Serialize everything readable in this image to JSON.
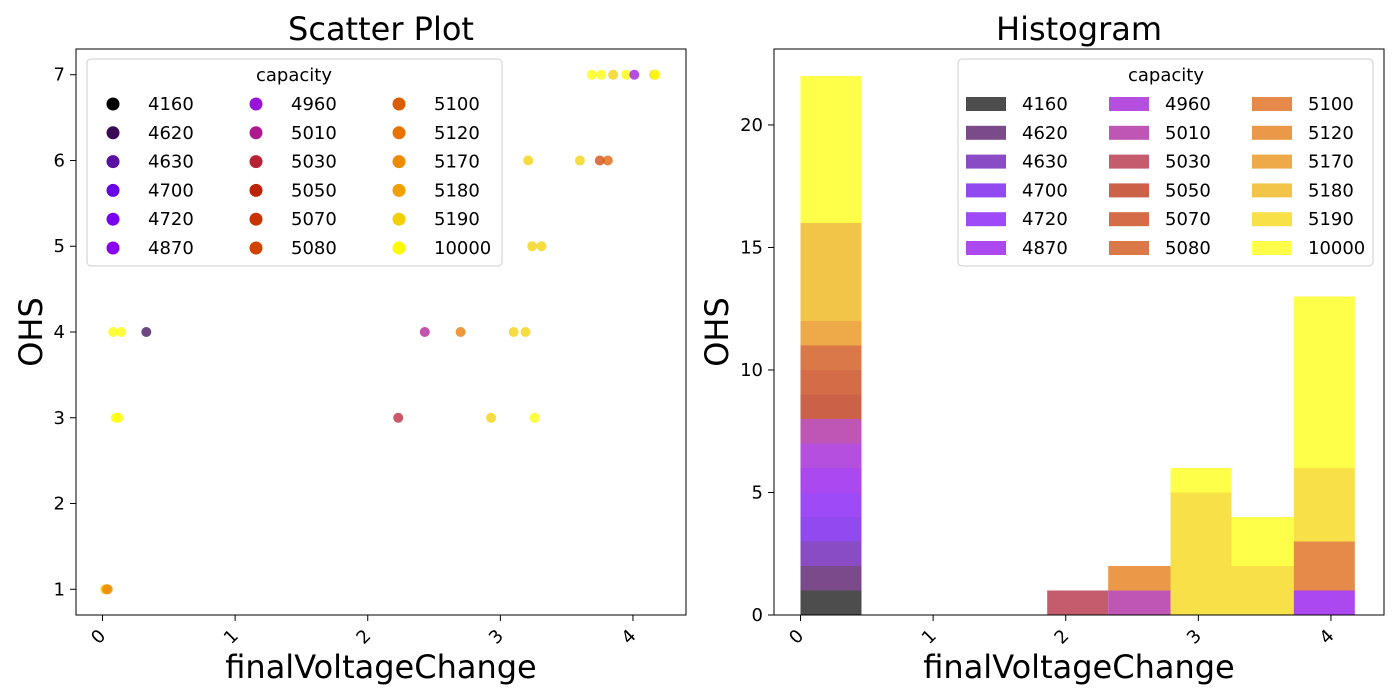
{
  "chart_data": [
    {
      "type": "scatter",
      "title": "Scatter Plot",
      "xlabel": "finalVoltageChange",
      "ylabel": "OHS",
      "xlim": [
        -0.2,
        4.4
      ],
      "ylim": [
        0.7,
        7.3
      ],
      "xticks": [
        "0",
        "1",
        "2",
        "3",
        "4"
      ],
      "yticks": [
        "1",
        "2",
        "3",
        "4",
        "5",
        "6",
        "7"
      ],
      "legend": {
        "title": "capacity",
        "placement": "upper-left",
        "entries": [
          "4160",
          "4620",
          "4630",
          "4700",
          "4720",
          "4870",
          "4960",
          "5010",
          "5030",
          "5050",
          "5070",
          "5080",
          "5100",
          "5120",
          "5170",
          "5180",
          "5190",
          "10000"
        ],
        "colors": [
          "#000000",
          "#3b0a57",
          "#5a0fa0",
          "#6a00e8",
          "#7a00f0",
          "#8b00f0",
          "#9a13d8",
          "#ad1a90",
          "#b82235",
          "#bd2202",
          "#c83300",
          "#d04400",
          "#dc5c00",
          "#e87300",
          "#ec8a00",
          "#f0a000",
          "#f2d000",
          "#fcfc00"
        ]
      },
      "points": [
        {
          "x": 0.02,
          "y": 1,
          "c": 16
        },
        {
          "x": 0.03,
          "y": 1,
          "c": 15
        },
        {
          "x": 0.04,
          "y": 1,
          "c": 14
        },
        {
          "x": 0.1,
          "y": 3,
          "c": 17
        },
        {
          "x": 0.12,
          "y": 3,
          "c": 17
        },
        {
          "x": 0.08,
          "y": 4,
          "c": 17
        },
        {
          "x": 0.14,
          "y": 4,
          "c": 17
        },
        {
          "x": 0.33,
          "y": 4,
          "c": 1
        },
        {
          "x": 2.23,
          "y": 3,
          "c": 8
        },
        {
          "x": 2.43,
          "y": 4,
          "c": 7
        },
        {
          "x": 2.7,
          "y": 4,
          "c": 13
        },
        {
          "x": 2.93,
          "y": 3,
          "c": 16
        },
        {
          "x": 3.1,
          "y": 4,
          "c": 16
        },
        {
          "x": 3.19,
          "y": 4,
          "c": 16
        },
        {
          "x": 3.26,
          "y": 3,
          "c": 17
        },
        {
          "x": 3.24,
          "y": 5,
          "c": 16
        },
        {
          "x": 3.31,
          "y": 5,
          "c": 16
        },
        {
          "x": 3.21,
          "y": 6,
          "c": 16
        },
        {
          "x": 3.6,
          "y": 6,
          "c": 16
        },
        {
          "x": 3.75,
          "y": 6,
          "c": 11
        },
        {
          "x": 3.81,
          "y": 6,
          "c": 12
        },
        {
          "x": 3.69,
          "y": 7,
          "c": 17
        },
        {
          "x": 3.76,
          "y": 7,
          "c": 17
        },
        {
          "x": 3.85,
          "y": 7,
          "c": 16
        },
        {
          "x": 3.95,
          "y": 7,
          "c": 17
        },
        {
          "x": 4.01,
          "y": 7,
          "c": 6
        },
        {
          "x": 4.16,
          "y": 7,
          "c": 16
        },
        {
          "x": 4.17,
          "y": 7,
          "c": 17
        }
      ]
    },
    {
      "type": "bar",
      "title": "Histogram",
      "xlabel": "finalVoltageChange",
      "ylabel": "OHS",
      "xlim": [
        -0.2,
        4.4
      ],
      "ylim": [
        0,
        23.1
      ],
      "xticks": [
        "0",
        "1",
        "2",
        "3",
        "4"
      ],
      "yticks": [
        "0",
        "5",
        "10",
        "15",
        "20"
      ],
      "bin_edges": [
        0.0,
        0.46,
        0.93,
        1.39,
        1.86,
        2.32,
        2.79,
        3.25,
        3.72,
        4.18
      ],
      "legend": {
        "title": "capacity",
        "placement": "upper-right",
        "entries": [
          "4160",
          "4620",
          "4630",
          "4700",
          "4720",
          "4870",
          "4960",
          "5010",
          "5030",
          "5050",
          "5070",
          "5080",
          "5100",
          "5120",
          "5170",
          "5180",
          "5190",
          "10000"
        ],
        "colors": [
          "#4d4d4d",
          "#7a4a8a",
          "#8a4cc4",
          "#904af0",
          "#9f4af7",
          "#ac48ef",
          "#b44fdf",
          "#bf55b4",
          "#c55c6e",
          "#cb6248",
          "#d46c48",
          "#da7848",
          "#e58a48",
          "#eb9948",
          "#eeaa48",
          "#f2c448",
          "#f7e048",
          "#feff48"
        ]
      },
      "stacks": [
        {
          "bin": 0,
          "segments": [
            {
              "c": 0,
              "v": 1
            },
            {
              "c": 1,
              "v": 1
            },
            {
              "c": 2,
              "v": 1
            },
            {
              "c": 3,
              "v": 1
            },
            {
              "c": 4,
              "v": 1
            },
            {
              "c": 5,
              "v": 1
            },
            {
              "c": 6,
              "v": 1
            },
            {
              "c": 7,
              "v": 1
            },
            {
              "c": 9,
              "v": 1
            },
            {
              "c": 10,
              "v": 1
            },
            {
              "c": 11,
              "v": 1
            },
            {
              "c": 14,
              "v": 1
            },
            {
              "c": 15,
              "v": 4
            },
            {
              "c": 17,
              "v": 6
            }
          ]
        },
        {
          "bin": 4,
          "segments": [
            {
              "c": 8,
              "v": 1
            }
          ]
        },
        {
          "bin": 5,
          "segments": [
            {
              "c": 7,
              "v": 1
            },
            {
              "c": 13,
              "v": 1
            }
          ]
        },
        {
          "bin": 6,
          "segments": [
            {
              "c": 16,
              "v": 5
            },
            {
              "c": 17,
              "v": 1
            }
          ]
        },
        {
          "bin": 7,
          "segments": [
            {
              "c": 16,
              "v": 2
            },
            {
              "c": 17,
              "v": 2
            }
          ]
        },
        {
          "bin": 8,
          "segments": [
            {
              "c": 5,
              "v": 1
            },
            {
              "c": 12,
              "v": 2
            },
            {
              "c": 16,
              "v": 3
            },
            {
              "c": 17,
              "v": 7
            }
          ]
        }
      ]
    }
  ]
}
